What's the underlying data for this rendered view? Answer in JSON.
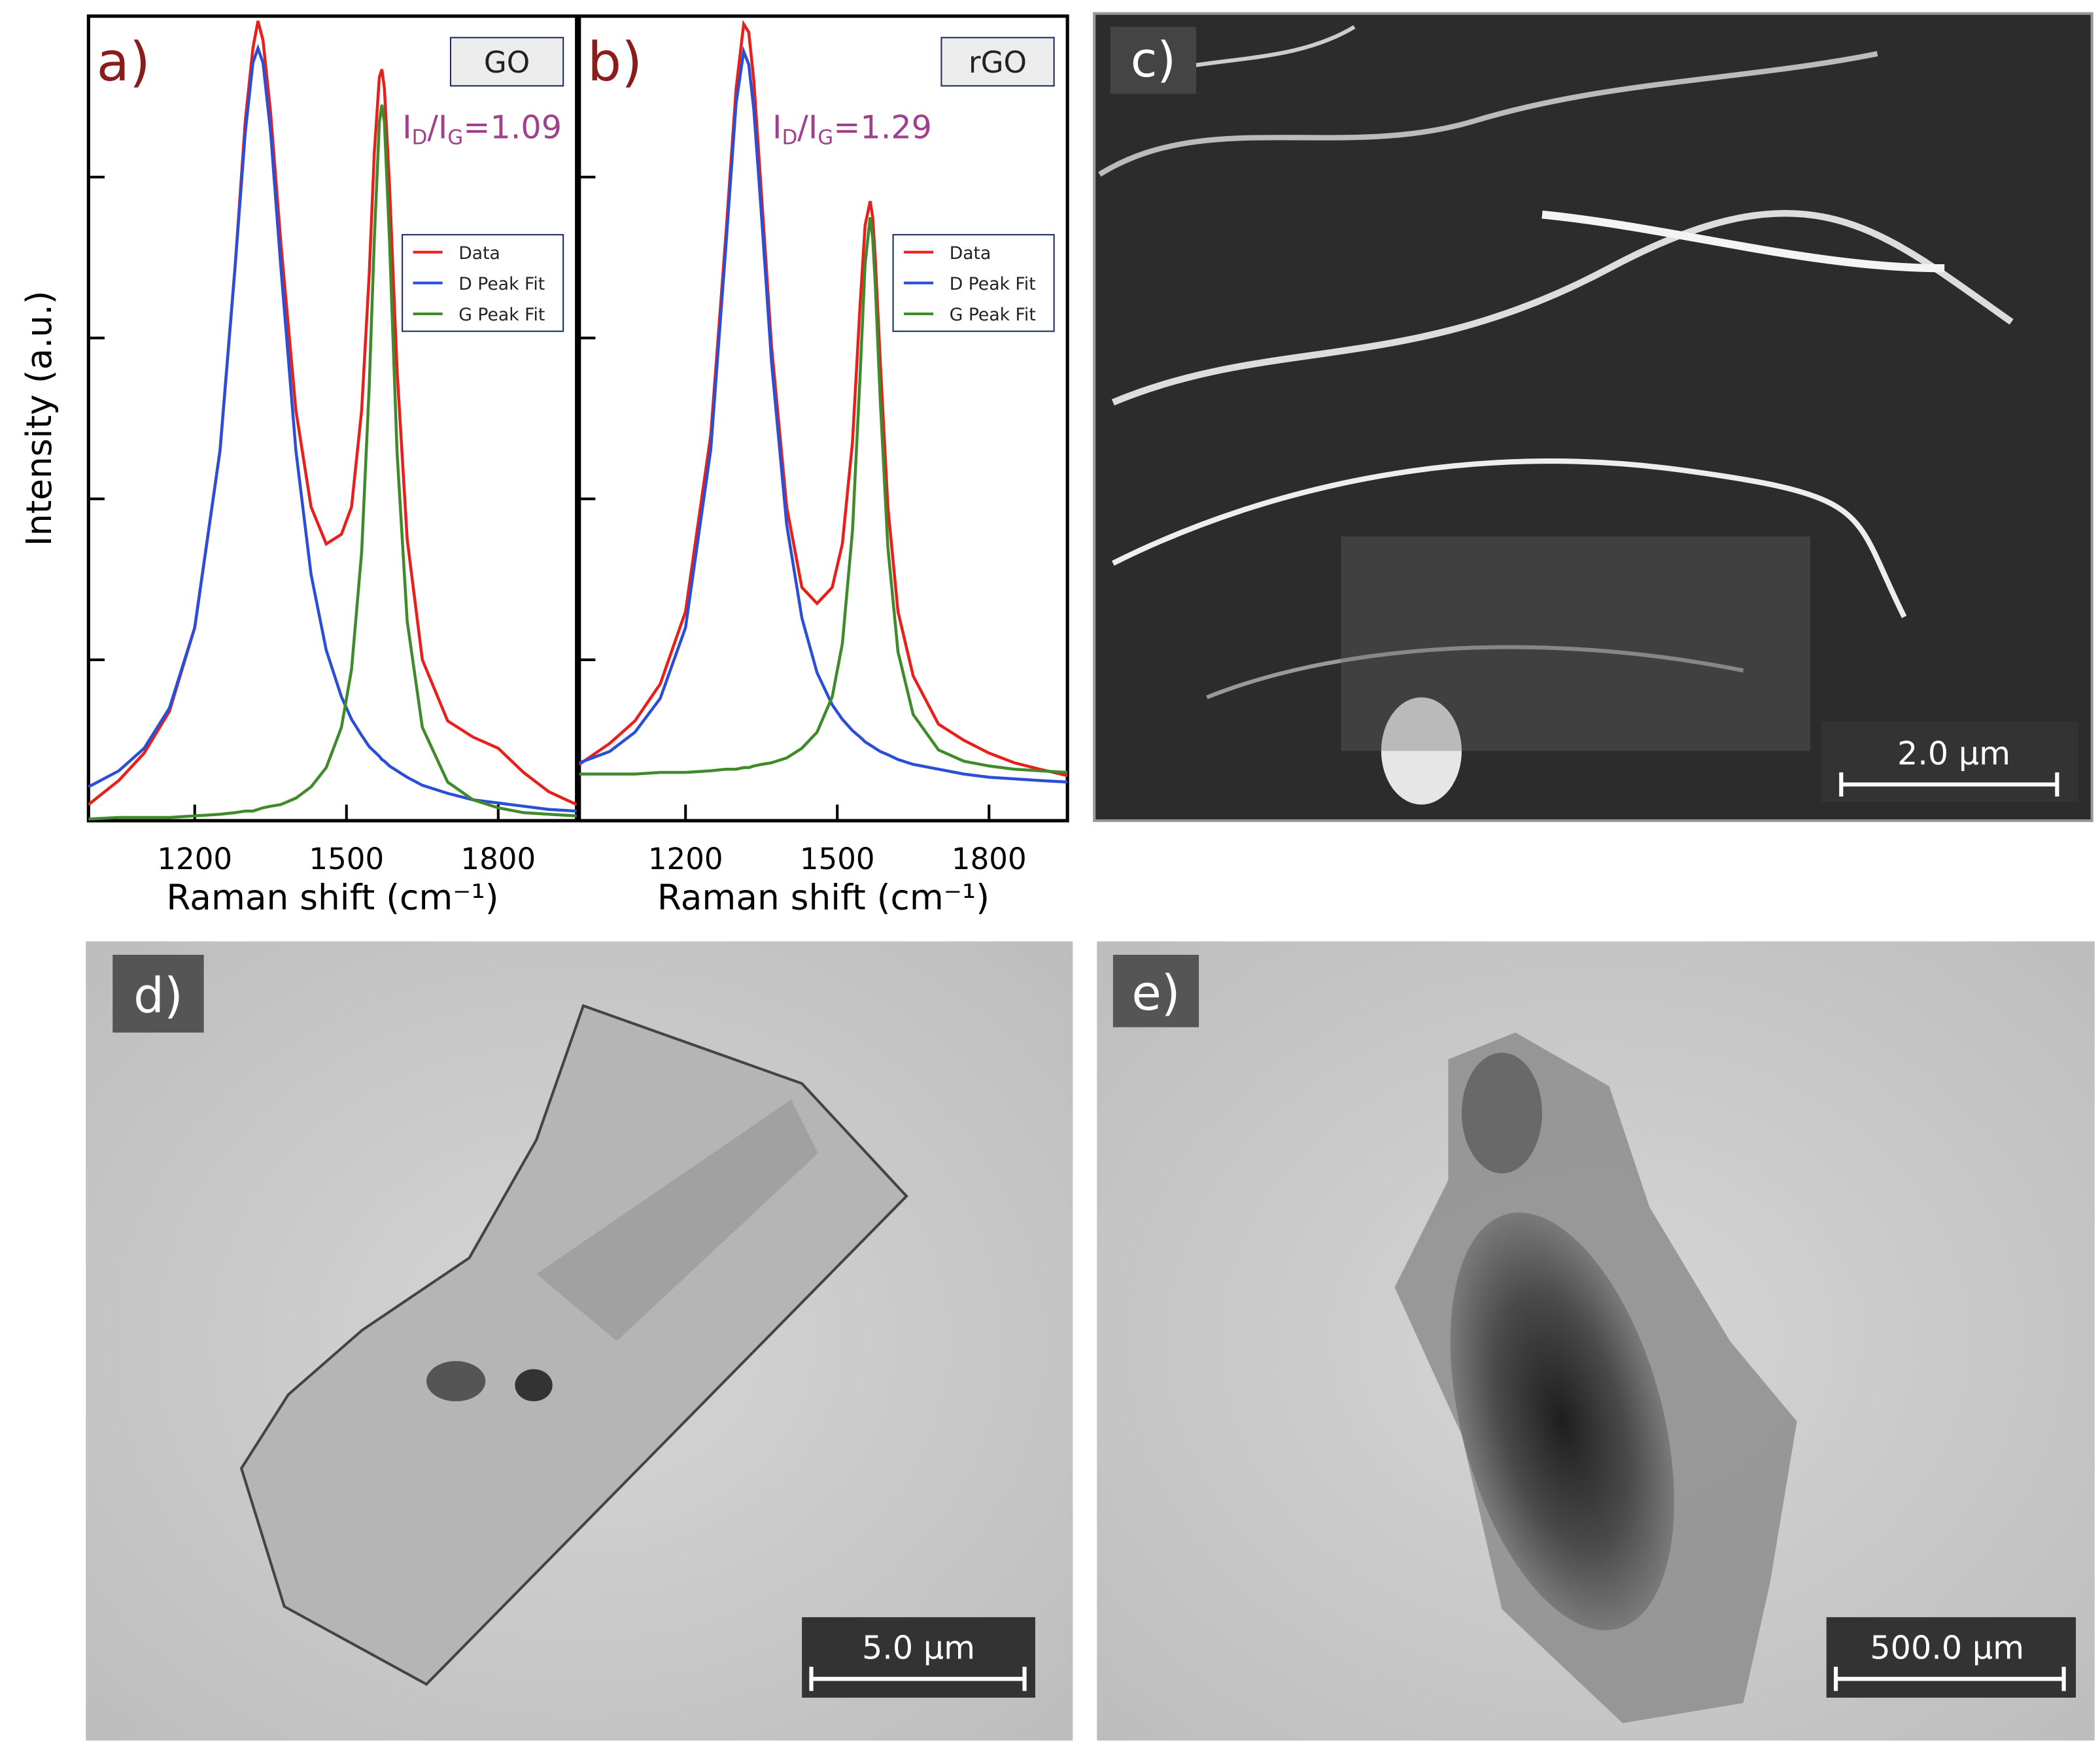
{
  "chart_data": [
    {
      "type": "line",
      "panel_label": "a)",
      "tag": "GO",
      "annotation": [
        "I",
        "D",
        "/I",
        "G",
        "=1.09"
      ],
      "xlabel": "Raman shift (cm⁻¹)",
      "ylabel": "Intensity (a.u.)",
      "xlim": [
        990,
        1955
      ],
      "ylim": [
        0,
        5
      ],
      "xticks": [
        1200,
        1500,
        1800
      ],
      "yticks": [
        1,
        2,
        3,
        4
      ],
      "legend": "right",
      "grid": false,
      "x": [
        990,
        1050,
        1100,
        1150,
        1200,
        1250,
        1280,
        1300,
        1315,
        1325,
        1335,
        1350,
        1370,
        1400,
        1430,
        1460,
        1490,
        1510,
        1530,
        1545,
        1555,
        1565,
        1570,
        1575,
        1585,
        1600,
        1620,
        1650,
        1700,
        1750,
        1800,
        1850,
        1900,
        1955
      ],
      "series": [
        {
          "name": "Data",
          "color": "#e8201c",
          "values": [
            0.1,
            0.25,
            0.42,
            0.68,
            1.2,
            2.3,
            3.45,
            4.35,
            4.8,
            4.97,
            4.85,
            4.4,
            3.6,
            2.55,
            1.95,
            1.72,
            1.78,
            1.95,
            2.55,
            3.4,
            4.15,
            4.62,
            4.67,
            4.55,
            3.95,
            2.8,
            1.75,
            1.0,
            0.62,
            0.52,
            0.45,
            0.3,
            0.18,
            0.1
          ]
        },
        {
          "name": "D Peak Fit",
          "color": "#2a4fd6",
          "values": [
            0.21,
            0.31,
            0.45,
            0.7,
            1.2,
            2.3,
            3.45,
            4.28,
            4.71,
            4.8,
            4.71,
            4.28,
            3.45,
            2.3,
            1.53,
            1.06,
            0.77,
            0.63,
            0.53,
            0.46,
            0.43,
            0.4,
            0.38,
            0.37,
            0.34,
            0.31,
            0.27,
            0.22,
            0.17,
            0.13,
            0.11,
            0.09,
            0.07,
            0.06
          ]
        },
        {
          "name": "G Peak Fit",
          "color": "#3f8a2a",
          "values": [
            0.01,
            0.02,
            0.02,
            0.02,
            0.03,
            0.04,
            0.05,
            0.06,
            0.06,
            0.07,
            0.08,
            0.09,
            0.1,
            0.14,
            0.21,
            0.33,
            0.58,
            0.94,
            1.67,
            2.7,
            3.61,
            4.34,
            4.45,
            4.34,
            3.61,
            2.29,
            1.24,
            0.58,
            0.24,
            0.13,
            0.08,
            0.05,
            0.04,
            0.03
          ]
        }
      ]
    },
    {
      "type": "line",
      "panel_label": "b)",
      "tag": "rGO",
      "annotation": [
        "I",
        "D",
        "/I",
        "G",
        "=1.29"
      ],
      "xlabel": "Raman shift (cm⁻¹)",
      "xlim": [
        990,
        1955
      ],
      "ylim": [
        0,
        5
      ],
      "xticks": [
        1200,
        1500,
        1800
      ],
      "yticks": [
        1,
        2,
        3,
        4
      ],
      "legend": "right",
      "grid": false,
      "x": [
        990,
        1050,
        1100,
        1150,
        1200,
        1250,
        1280,
        1300,
        1315,
        1325,
        1335,
        1350,
        1370,
        1400,
        1430,
        1460,
        1490,
        1510,
        1530,
        1545,
        1555,
        1565,
        1570,
        1575,
        1585,
        1600,
        1620,
        1650,
        1700,
        1750,
        1800,
        1850,
        1900,
        1955
      ],
      "series": [
        {
          "name": "Data",
          "color": "#e8201c",
          "values": [
            0.35,
            0.48,
            0.62,
            0.85,
            1.3,
            2.4,
            3.65,
            4.55,
            4.95,
            4.9,
            4.6,
            3.9,
            2.95,
            1.95,
            1.45,
            1.35,
            1.45,
            1.72,
            2.35,
            3.2,
            3.7,
            3.85,
            3.75,
            3.5,
            2.85,
            1.95,
            1.3,
            0.9,
            0.6,
            0.5,
            0.42,
            0.36,
            0.32,
            0.28
          ]
        },
        {
          "name": "D Peak Fit",
          "color": "#2a4fd6",
          "values": [
            0.36,
            0.43,
            0.55,
            0.76,
            1.2,
            2.31,
            3.58,
            4.46,
            4.78,
            4.7,
            4.42,
            3.77,
            2.85,
            1.84,
            1.26,
            0.92,
            0.72,
            0.63,
            0.56,
            0.52,
            0.49,
            0.47,
            0.46,
            0.45,
            0.43,
            0.41,
            0.38,
            0.35,
            0.32,
            0.29,
            0.27,
            0.26,
            0.25,
            0.24
          ]
        },
        {
          "name": "G Peak Fit",
          "color": "#3f8a2a",
          "values": [
            0.29,
            0.29,
            0.29,
            0.3,
            0.3,
            0.31,
            0.32,
            0.32,
            0.33,
            0.33,
            0.34,
            0.35,
            0.36,
            0.39,
            0.45,
            0.55,
            0.77,
            1.1,
            1.8,
            2.76,
            3.46,
            3.75,
            3.62,
            3.34,
            2.61,
            1.7,
            1.05,
            0.66,
            0.44,
            0.37,
            0.34,
            0.32,
            0.31,
            0.3
          ]
        }
      ]
    }
  ],
  "images": [
    {
      "panel_label": "c)",
      "scale_bar": "2.0 µm"
    },
    {
      "panel_label": "d)",
      "scale_bar": "5.0 µm"
    },
    {
      "panel_label": "e)",
      "scale_bar": "500.0 µm"
    }
  ]
}
